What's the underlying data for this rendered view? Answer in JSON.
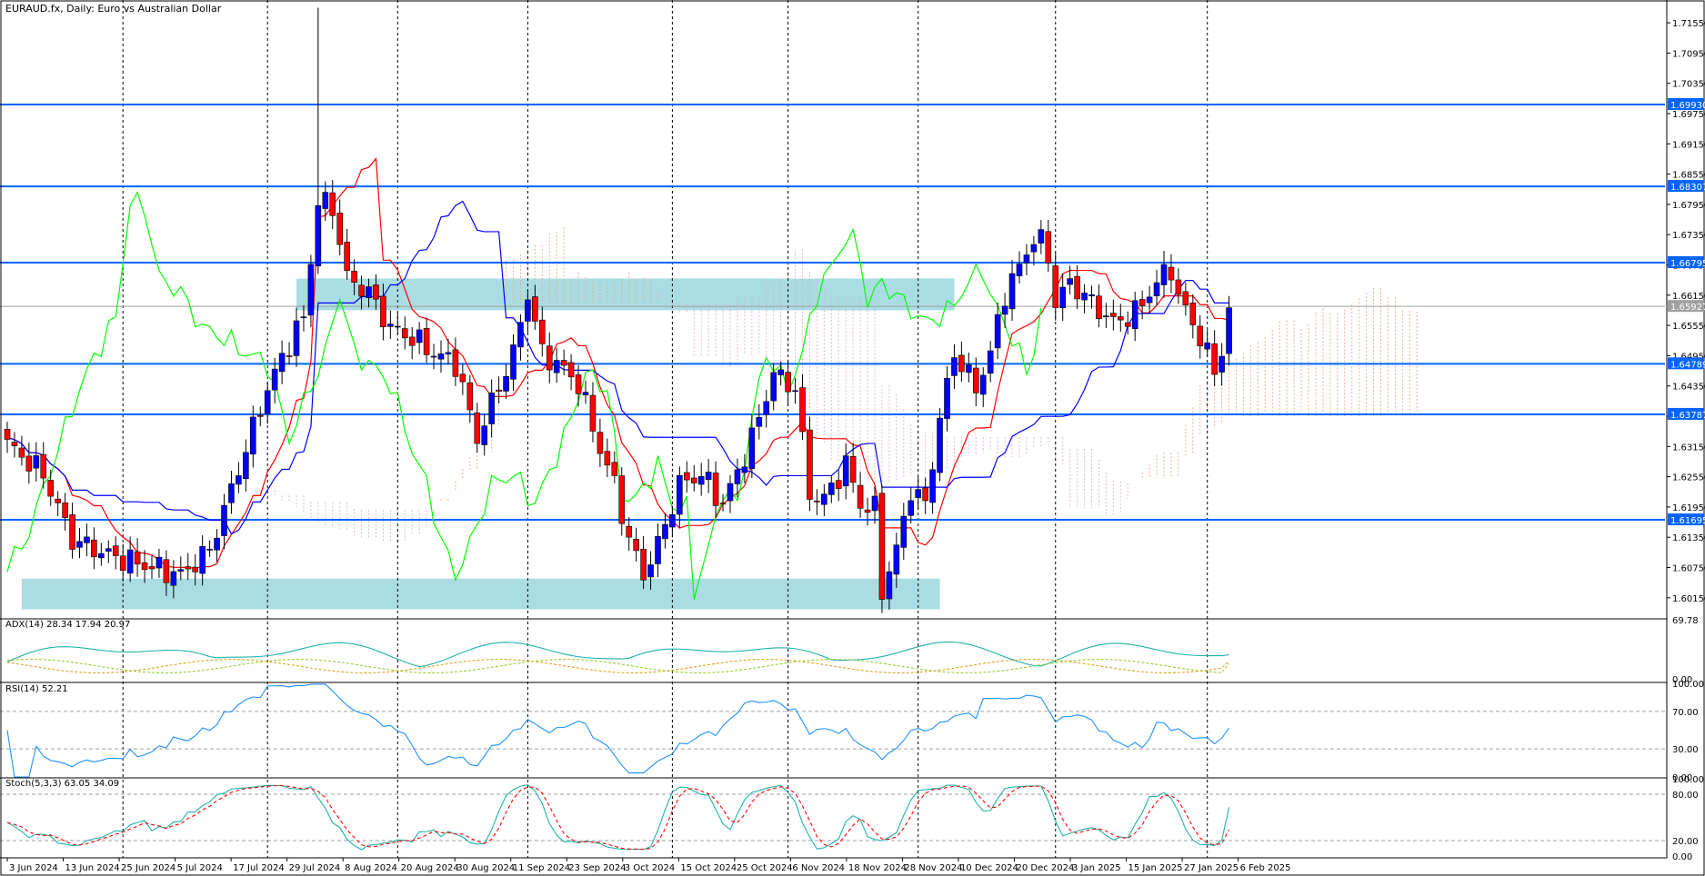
{
  "title": "EURAUD.fx, Daily:  Euro vs Australian Dollar",
  "chart_data": {
    "type": "candlestick",
    "symbol": "EURAUD.fx",
    "timeframe": "Daily",
    "description": "Euro vs Australian Dollar",
    "price_axis": {
      "ylim": [
        1.5975,
        1.7193
      ],
      "ticks": [
        "1.71550",
        "1.70950",
        "1.70350",
        "1.69750",
        "1.69150",
        "1.68550",
        "1.67950",
        "1.67350",
        "1.66750",
        "1.66150",
        "1.65550",
        "1.64950",
        "1.64350",
        "1.63750",
        "1.63150",
        "1.62550",
        "1.61950",
        "1.61350",
        "1.60750",
        "1.60150"
      ]
    },
    "horizontal_levels": [
      {
        "value": 1.6993,
        "label": "1.69930"
      },
      {
        "value": 1.68307,
        "label": "1.68307"
      },
      {
        "value": 1.66795,
        "label": "1.66795"
      },
      {
        "value": 1.64789,
        "label": "1.64789"
      },
      {
        "value": 1.63787,
        "label": "1.63787"
      },
      {
        "value": 1.61695,
        "label": "1.61695"
      }
    ],
    "current_price": {
      "value": 1.65927,
      "label": "1.65927"
    },
    "zones": [
      {
        "from_date": "13 Aug 2024",
        "to_date": "20 Jan 2025",
        "low": 1.6585,
        "high": 1.6648
      },
      {
        "from_date": "4 Jun 2024",
        "to_date": "5 Dec 2024",
        "low": 1.5992,
        "high": 1.6053
      }
    ],
    "dates": [
      "3 Jun 2024",
      "13 Jun 2024",
      "25 Jun 2024",
      "5 Jul 2024",
      "17 Jul 2024",
      "29 Jul 2024",
      "8 Aug 2024",
      "20 Aug 2024",
      "30 Aug 2024",
      "11 Sep 2024",
      "23 Sep 2024",
      "3 Oct 2024",
      "15 Oct 2024",
      "25 Oct 2024",
      "6 Nov 2024",
      "18 Nov 2024",
      "28 Nov 2024",
      "10 Dec 2024",
      "20 Dec 2024",
      "3 Jan 2025",
      "15 Jan 2025",
      "27 Jan 2025",
      "6 Feb 2025"
    ],
    "close_anchors": [
      [
        0,
        1.632
      ],
      [
        5,
        1.626
      ],
      [
        9,
        1.613
      ],
      [
        14,
        1.61
      ],
      [
        19,
        1.608
      ],
      [
        24,
        1.606
      ],
      [
        28,
        1.611
      ],
      [
        32,
        1.627
      ],
      [
        36,
        1.643
      ],
      [
        39,
        1.652
      ],
      [
        41,
        1.657
      ],
      [
        43,
        1.68
      ],
      [
        45,
        1.679
      ],
      [
        47,
        1.665
      ],
      [
        50,
        1.662
      ],
      [
        53,
        1.655
      ],
      [
        56,
        1.653
      ],
      [
        59,
        1.65
      ],
      [
        62,
        1.648
      ],
      [
        65,
        1.633
      ],
      [
        67,
        1.64
      ],
      [
        70,
        1.65
      ],
      [
        72,
        1.662
      ],
      [
        74,
        1.65
      ],
      [
        76,
        1.648
      ],
      [
        79,
        1.644
      ],
      [
        82,
        1.631
      ],
      [
        84,
        1.624
      ],
      [
        86,
        1.613
      ],
      [
        88,
        1.606
      ],
      [
        90,
        1.612
      ],
      [
        93,
        1.624
      ],
      [
        96,
        1.626
      ],
      [
        99,
        1.62
      ],
      [
        103,
        1.633
      ],
      [
        106,
        1.646
      ],
      [
        109,
        1.643
      ],
      [
        111,
        1.622
      ],
      [
        113,
        1.621
      ],
      [
        116,
        1.628
      ],
      [
        118,
        1.62
      ],
      [
        120,
        1.619
      ],
      [
        121,
        1.603
      ],
      [
        123,
        1.611
      ],
      [
        125,
        1.623
      ],
      [
        127,
        1.62
      ],
      [
        129,
        1.637
      ],
      [
        131,
        1.65
      ],
      [
        134,
        1.643
      ],
      [
        136,
        1.65
      ],
      [
        138,
        1.662
      ],
      [
        140,
        1.667
      ],
      [
        142,
        1.673
      ],
      [
        143,
        1.672
      ],
      [
        144,
        1.669
      ],
      [
        145,
        1.66
      ],
      [
        147,
        1.664
      ],
      [
        150,
        1.66
      ],
      [
        153,
        1.656
      ],
      [
        156,
        1.658
      ],
      [
        159,
        1.664
      ],
      [
        161,
        1.667
      ],
      [
        162,
        1.661
      ],
      [
        164,
        1.656
      ],
      [
        166,
        1.65
      ],
      [
        167,
        1.646
      ],
      [
        168,
        1.651
      ],
      [
        169,
        1.659
      ]
    ],
    "indicators": [
      {
        "name": "ADX(14)",
        "values": [
          28.34,
          17.94,
          20.97
        ],
        "scale": [
          0.0,
          69.78
        ],
        "ticks": [
          "69.78",
          "0.00"
        ]
      },
      {
        "name": "RSI(14)",
        "values": [
          52.21
        ],
        "scale": [
          0.0,
          100.0
        ],
        "levels": [
          70,
          30
        ],
        "ticks": [
          "100.00",
          "70.00",
          "30.00",
          "0.00"
        ]
      },
      {
        "name": "Stoch(5,3,3)",
        "values": [
          63.05,
          34.09
        ],
        "scale": [
          0.0,
          100.0
        ],
        "levels": [
          80,
          20
        ],
        "ticks": [
          "100.00",
          "80.00",
          "20.00",
          "0.00"
        ]
      }
    ],
    "colors": {
      "bull": "#0000ff",
      "bear": "#ff0000",
      "tenkan": "#ff0000",
      "kijun": "#0000ff",
      "chikou": "#00ff00",
      "level": "#0064ff",
      "zone": "#aadde3",
      "adx": "#20b2aa",
      "rsi": "#1e90ff",
      "stoch_main": "#20b2aa",
      "stoch_signal": "#ff0000"
    }
  },
  "indicator_titles": {
    "adx": "ADX(14) 28.34 17.94 20.97",
    "rsi": "RSI(14) 52.21",
    "stoch": "Stoch(5,3,3) 63.05 34.09"
  }
}
